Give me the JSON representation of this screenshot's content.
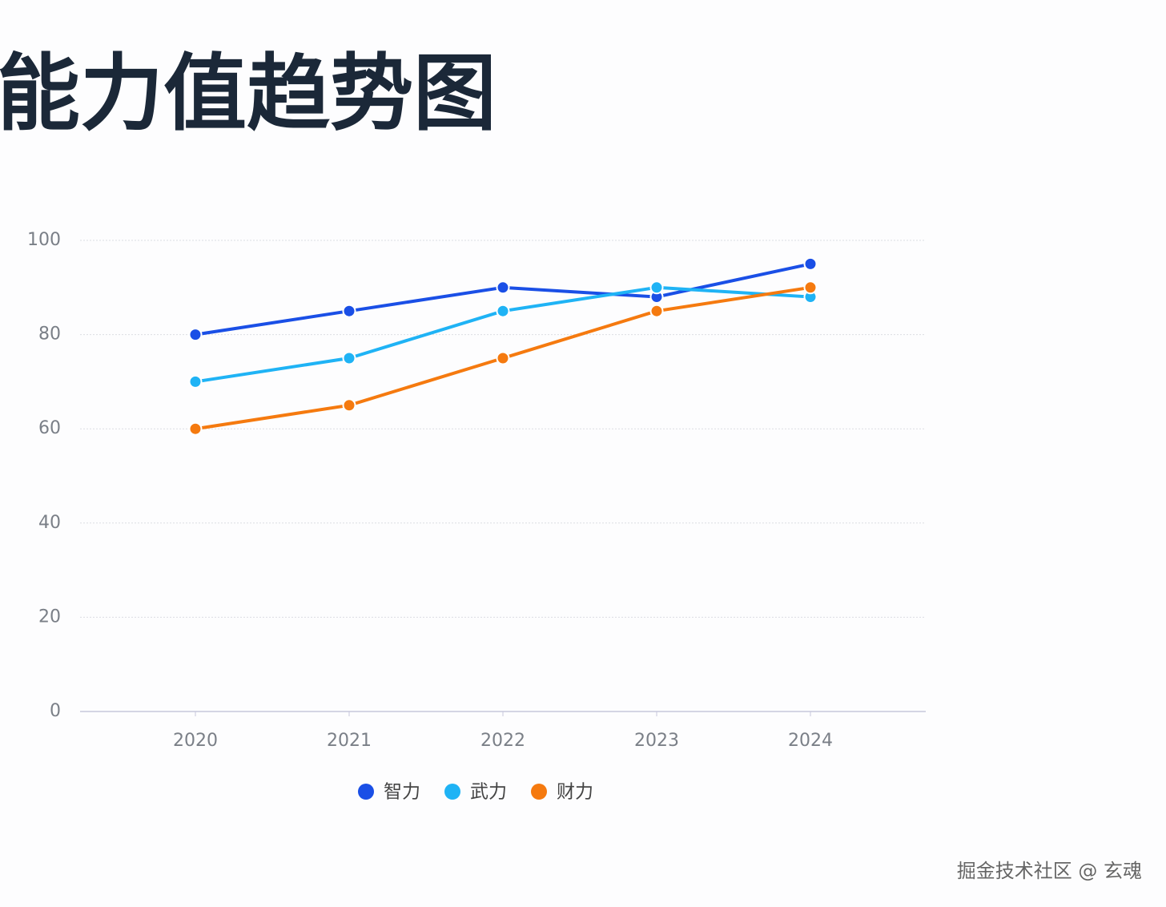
{
  "chart_data": {
    "type": "line",
    "title": "能力值趋势图",
    "categories": [
      "2020",
      "2021",
      "2022",
      "2023",
      "2024"
    ],
    "series": [
      {
        "name": "智力",
        "color": "#1a4fe6",
        "values": [
          80,
          85,
          90,
          88,
          95
        ]
      },
      {
        "name": "武力",
        "color": "#1fb3f5",
        "values": [
          70,
          75,
          85,
          90,
          88
        ]
      },
      {
        "name": "财力",
        "color": "#f57a0f",
        "values": [
          60,
          65,
          75,
          85,
          90
        ]
      }
    ],
    "ylim": [
      0,
      100
    ],
    "yticks": [
      0,
      20,
      40,
      60,
      80,
      100
    ],
    "grid": true,
    "legend": "bottom"
  },
  "watermark": "掘金技术社区 @ 玄魂"
}
